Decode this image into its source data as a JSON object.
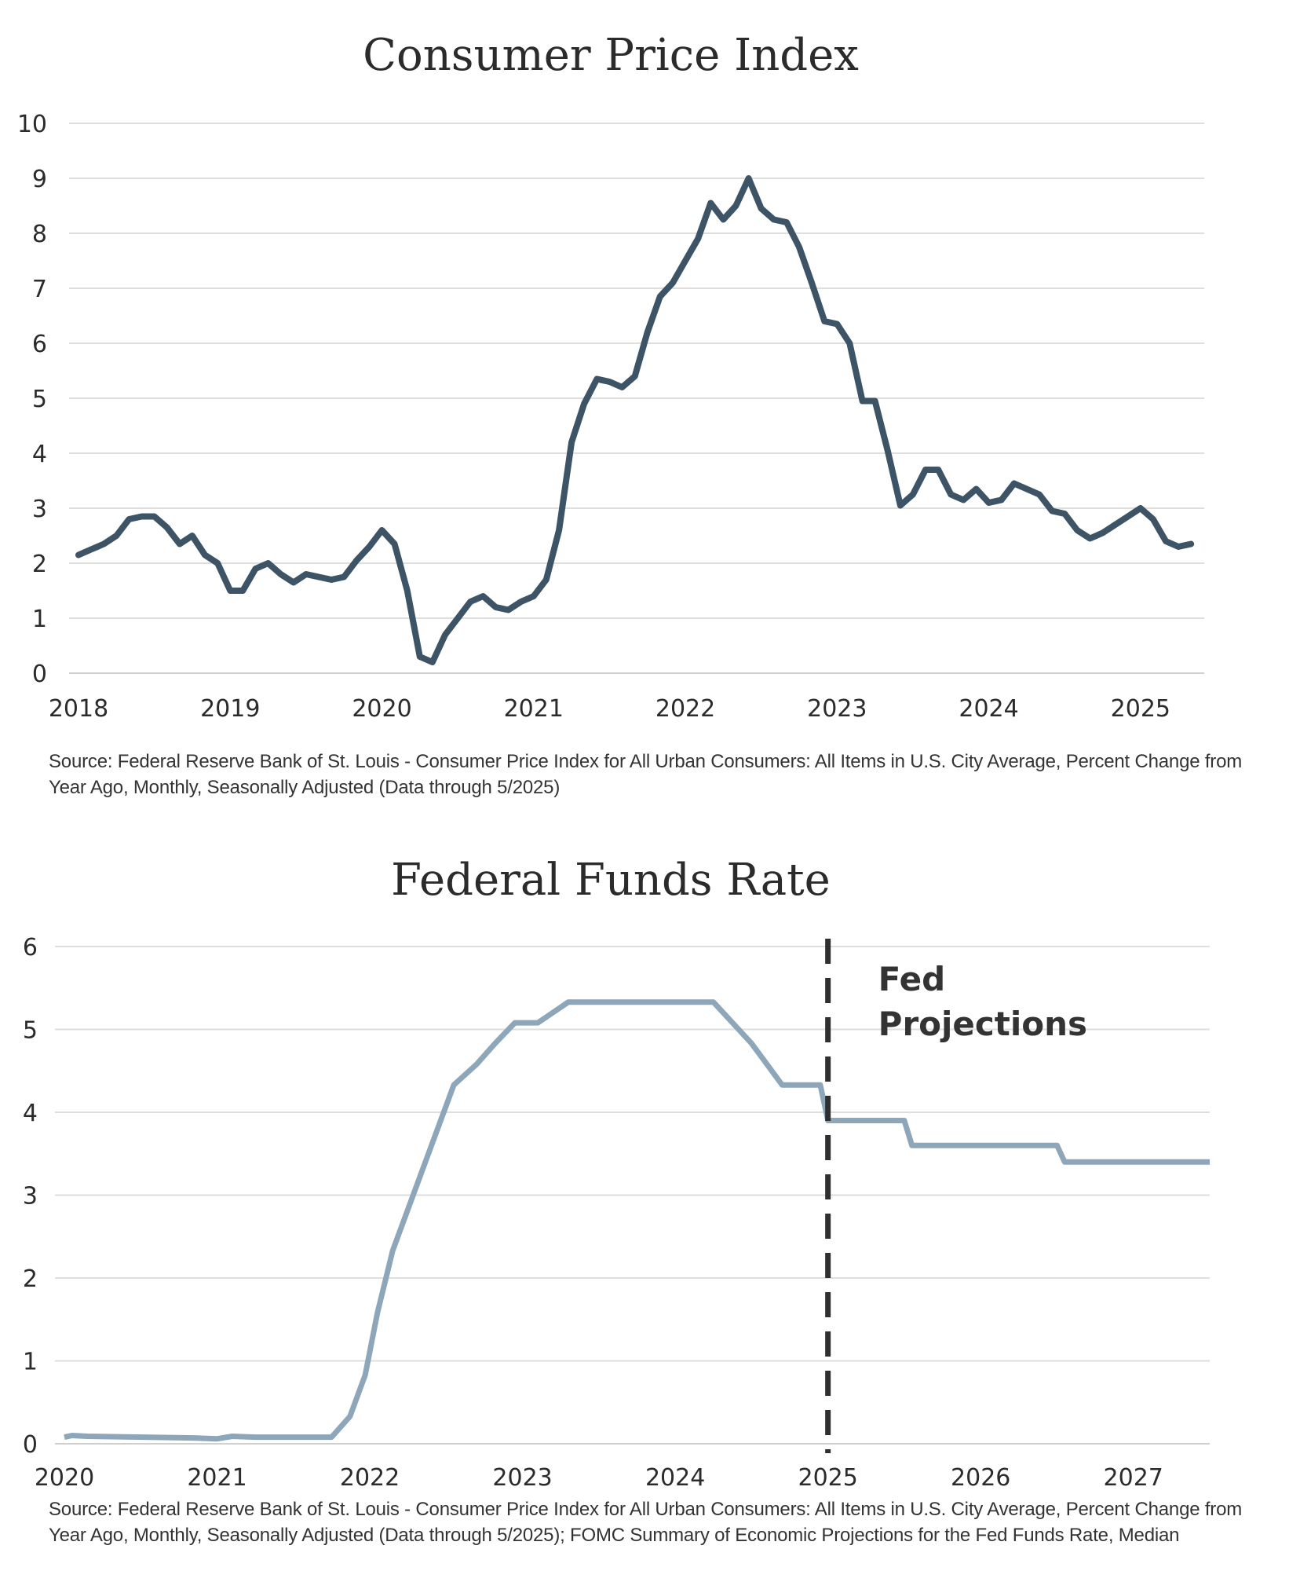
{
  "chart_data": [
    {
      "type": "line",
      "title": "Consumer Price Index",
      "xlabel": "",
      "ylabel": "",
      "xlim": [
        2018.0,
        2025.42
      ],
      "ylim": [
        0,
        10
      ],
      "yticks": [
        0,
        1,
        2,
        3,
        4,
        5,
        6,
        7,
        8,
        9,
        10
      ],
      "xticks": [
        2018,
        2019,
        2020,
        2021,
        2022,
        2023,
        2024,
        2025
      ],
      "grid": true,
      "color": "#3d5366",
      "x": [
        2018.0,
        2018.083,
        2018.167,
        2018.25,
        2018.333,
        2018.417,
        2018.5,
        2018.583,
        2018.667,
        2018.75,
        2018.833,
        2018.917,
        2019.0,
        2019.083,
        2019.167,
        2019.25,
        2019.333,
        2019.417,
        2019.5,
        2019.583,
        2019.667,
        2019.75,
        2019.833,
        2019.917,
        2020.0,
        2020.083,
        2020.167,
        2020.25,
        2020.333,
        2020.417,
        2020.5,
        2020.583,
        2020.667,
        2020.75,
        2020.833,
        2020.917,
        2021.0,
        2021.083,
        2021.167,
        2021.25,
        2021.333,
        2021.417,
        2021.5,
        2021.583,
        2021.667,
        2021.75,
        2021.833,
        2021.917,
        2022.0,
        2022.083,
        2022.167,
        2022.25,
        2022.333,
        2022.417,
        2022.5,
        2022.583,
        2022.667,
        2022.75,
        2022.833,
        2022.917,
        2023.0,
        2023.083,
        2023.167,
        2023.25,
        2023.333,
        2023.417,
        2023.5,
        2023.583,
        2023.667,
        2023.75,
        2023.833,
        2023.917,
        2024.0,
        2024.083,
        2024.167,
        2024.25,
        2024.333,
        2024.417,
        2024.5,
        2024.583,
        2024.667,
        2024.75,
        2024.833,
        2024.917,
        2025.0,
        2025.083,
        2025.167,
        2025.25,
        2025.333
      ],
      "values": [
        2.15,
        2.25,
        2.35,
        2.5,
        2.8,
        2.85,
        2.85,
        2.65,
        2.35,
        2.5,
        2.15,
        2.0,
        1.5,
        1.5,
        1.9,
        2.0,
        1.8,
        1.65,
        1.8,
        1.75,
        1.7,
        1.75,
        2.05,
        2.3,
        2.6,
        2.35,
        1.5,
        0.3,
        0.2,
        0.7,
        1.0,
        1.3,
        1.4,
        1.2,
        1.15,
        1.3,
        1.4,
        1.7,
        2.6,
        4.2,
        4.9,
        5.35,
        5.3,
        5.2,
        5.4,
        6.2,
        6.85,
        7.1,
        7.5,
        7.9,
        8.55,
        8.25,
        8.5,
        9.0,
        8.45,
        8.25,
        8.2,
        7.75,
        7.1,
        6.4,
        6.35,
        6.0,
        4.95,
        4.95,
        4.05,
        3.05,
        3.25,
        3.7,
        3.7,
        3.25,
        3.15,
        3.35,
        3.1,
        3.15,
        3.45,
        3.35,
        3.25,
        2.95,
        2.9,
        2.6,
        2.45,
        2.55,
        2.7,
        2.85,
        3.0,
        2.8,
        2.4,
        2.3,
        2.35
      ],
      "source": "Source: Federal Reserve Bank of St. Louis - Consumer Price Index for All Urban Consumers: All Items in U.S. City Average, Percent Change from Year Ago, Monthly, Seasonally Adjusted (Data through 5/2025)"
    },
    {
      "type": "line",
      "title": "Federal Funds Rate",
      "xlabel": "",
      "ylabel": "",
      "xlim": [
        2020.0,
        2027.5
      ],
      "ylim": [
        0,
        6
      ],
      "yticks": [
        0,
        1,
        2,
        3,
        4,
        5,
        6
      ],
      "xticks": [
        2020,
        2021,
        2022,
        2023,
        2024,
        2025,
        2026,
        2027
      ],
      "grid": true,
      "color": "#8ea6ba",
      "step": true,
      "x": [
        2020.0,
        2020.05,
        2020.15,
        2020.85,
        2021.0,
        2021.1,
        2021.25,
        2021.75,
        2021.87,
        2021.97,
        2022.05,
        2022.15,
        2022.3,
        2022.45,
        2022.55,
        2022.7,
        2022.82,
        2022.95,
        2023.1,
        2023.3,
        2023.55,
        2024.25,
        2024.5,
        2024.6,
        2024.7,
        2024.75,
        2024.95,
        2025.0,
        2025.5,
        2025.55,
        2026.5,
        2026.55,
        2027.5
      ],
      "values": [
        0.08,
        0.1,
        0.09,
        0.07,
        0.06,
        0.09,
        0.08,
        0.08,
        0.33,
        0.83,
        1.58,
        2.33,
        3.08,
        3.83,
        4.33,
        4.58,
        4.83,
        5.08,
        5.08,
        5.33,
        5.33,
        5.33,
        4.83,
        4.58,
        4.33,
        4.33,
        4.33,
        3.9,
        3.9,
        3.6,
        3.6,
        3.4,
        3.4
      ],
      "annotation": {
        "x": 2025.0,
        "label_line1": "Fed",
        "label_line2": "Projections",
        "style": "dashed-vertical"
      },
      "source": "Source: Federal Reserve Bank of St. Louis - Consumer Price Index for All Urban Consumers: All Items in U.S. City Average, Percent Change from Year Ago, Monthly, Seasonally Adjusted (Data through 5/2025); FOMC Summary of Economic Projections for the Fed Funds Rate, Median"
    }
  ]
}
